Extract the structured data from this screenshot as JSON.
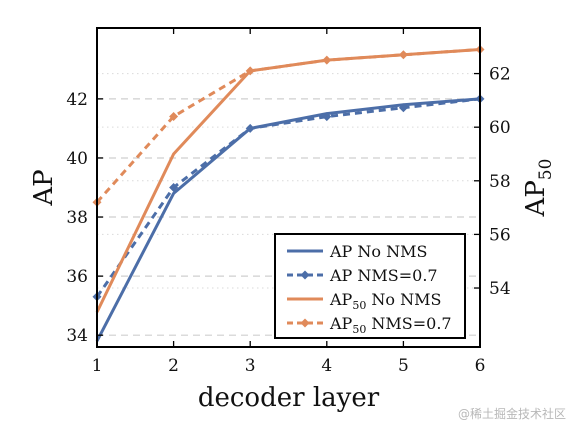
{
  "chart_data": {
    "type": "line",
    "x": [
      1,
      2,
      3,
      4,
      5,
      6
    ],
    "xlabel": "decoder layer",
    "ylabel": "AP",
    "y2label": "AP",
    "y2label_sub": "50",
    "xlim": [
      1,
      6
    ],
    "ylim": [
      33.6,
      44.4
    ],
    "y2lim": [
      51.8,
      63.7
    ],
    "xticks": [
      "1",
      "2",
      "3",
      "4",
      "5",
      "6"
    ],
    "yticks": [
      34,
      36,
      38,
      40,
      42
    ],
    "y2ticks": [
      54,
      56,
      58,
      60,
      62
    ],
    "grid": true,
    "legend_position": "bottom-right",
    "series": [
      {
        "name": "AP No NMS",
        "axis": "left",
        "style": "solid",
        "color": "#4c6ea8",
        "values": [
          33.8,
          38.8,
          41.0,
          41.5,
          41.8,
          42.0
        ]
      },
      {
        "name": "AP NMS=0.7",
        "axis": "left",
        "style": "dashed",
        "color": "#4c6ea8",
        "values": [
          35.3,
          39.0,
          41.0,
          41.4,
          41.7,
          42.0
        ]
      },
      {
        "name": "AP",
        "name_sub": "50",
        "name_suffix": " No NMS",
        "axis": "right",
        "style": "solid",
        "color": "#e08a5a",
        "values": [
          53.1,
          59.0,
          62.1,
          62.5,
          62.7,
          62.9
        ]
      },
      {
        "name": "AP",
        "name_sub": "50",
        "name_suffix": " NMS=0.7",
        "axis": "right",
        "style": "dashed",
        "color": "#e08a5a",
        "values": [
          57.2,
          60.4,
          62.1,
          62.5,
          62.7,
          62.9
        ]
      }
    ]
  },
  "watermark": "@稀土掘金技术社区"
}
